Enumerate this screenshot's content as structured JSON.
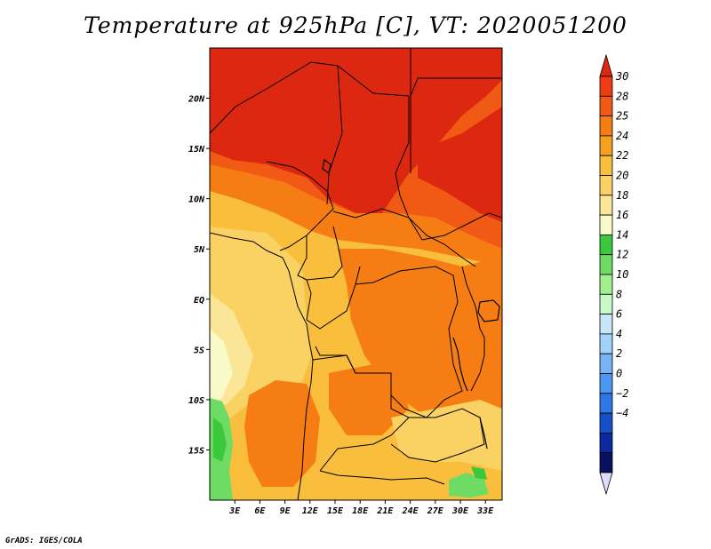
{
  "title": "Temperature at 925hPa [C], VT: 2020051200",
  "credit": "GrADS: IGES/COLA",
  "map": {
    "lon_range": [
      0,
      35
    ],
    "lat_range": [
      -20,
      25
    ],
    "lat_ticks": [
      {
        "value": 20,
        "label": "20N"
      },
      {
        "value": 15,
        "label": "15N"
      },
      {
        "value": 10,
        "label": "10N"
      },
      {
        "value": 5,
        "label": "5N"
      },
      {
        "value": 0,
        "label": "EQ"
      },
      {
        "value": -5,
        "label": "5S"
      },
      {
        "value": -10,
        "label": "10S"
      },
      {
        "value": -15,
        "label": "15S"
      }
    ],
    "lon_ticks": [
      {
        "value": 3,
        "label": "3E"
      },
      {
        "value": 6,
        "label": "6E"
      },
      {
        "value": 9,
        "label": "9E"
      },
      {
        "value": 12,
        "label": "12E"
      },
      {
        "value": 15,
        "label": "15E"
      },
      {
        "value": 18,
        "label": "18E"
      },
      {
        "value": 21,
        "label": "21E"
      },
      {
        "value": 24,
        "label": "24E"
      },
      {
        "value": 27,
        "label": "27E"
      },
      {
        "value": 30,
        "label": "30E"
      },
      {
        "value": 33,
        "label": "33E"
      }
    ]
  },
  "colorbar": {
    "top_arrow_color": "#dc2810",
    "bottom_arrow_color": "#dcdcfa",
    "bins": [
      {
        "color": "#f03c14",
        "label": "30"
      },
      {
        "color": "#f05a14",
        "label": "28"
      },
      {
        "color": "#f57d14",
        "label": "25"
      },
      {
        "color": "#f5a01e",
        "label": "24"
      },
      {
        "color": "#f8be3c",
        "label": "22"
      },
      {
        "color": "#fad264",
        "label": "20"
      },
      {
        "color": "#fae696",
        "label": "18"
      },
      {
        "color": "#fafac8",
        "label": "16"
      },
      {
        "color": "#3cc83c",
        "label": "14"
      },
      {
        "color": "#6edc64",
        "label": "12"
      },
      {
        "color": "#a0f08c",
        "label": "10"
      },
      {
        "color": "#c8fac8",
        "label": "8"
      },
      {
        "color": "#c8e6fa",
        "label": "6"
      },
      {
        "color": "#a0d2fa",
        "label": "4"
      },
      {
        "color": "#78b4f5",
        "label": "2"
      },
      {
        "color": "#4b96f0",
        "label": "0"
      },
      {
        "color": "#2d78e6",
        "label": "−2"
      },
      {
        "color": "#1450c8",
        "label": "−4"
      },
      {
        "color": "#0a28a0",
        "label": ""
      },
      {
        "color": "#0a1060",
        "label": ""
      }
    ]
  }
}
